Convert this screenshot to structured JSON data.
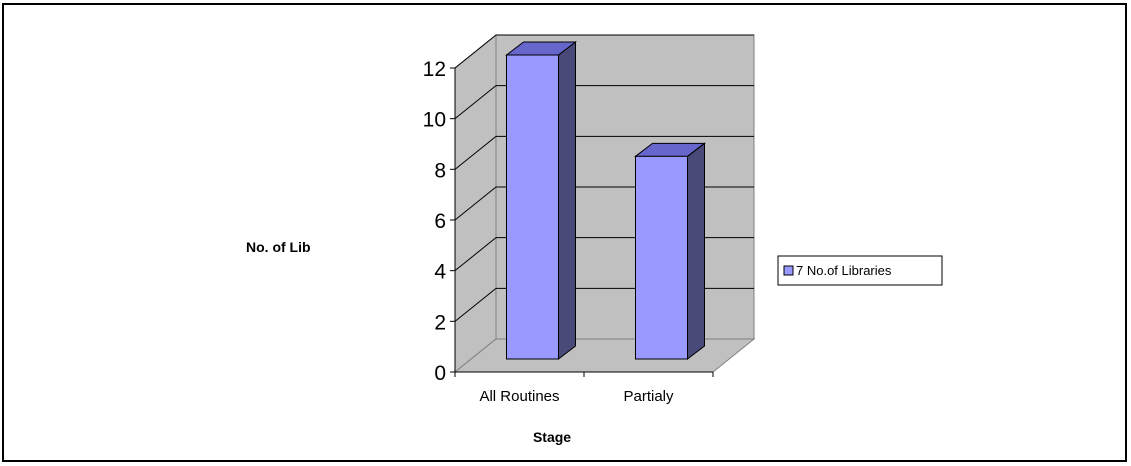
{
  "chart_data": {
    "type": "bar",
    "style": "3d-column",
    "categories": [
      "All Routines",
      "Partialy"
    ],
    "series": [
      {
        "name": "7 No.of Libraries",
        "values": [
          12,
          8
        ],
        "color": "#9999FF",
        "side_color": "#4A4A7A"
      }
    ],
    "xlabel": "Stage",
    "ylabel": "No. of Lib",
    "ylim": [
      0,
      12
    ],
    "yticks": [
      0,
      2,
      4,
      6,
      8,
      10,
      12
    ],
    "grid": true,
    "wall_color": "#C0C0C0",
    "legend": "right"
  }
}
